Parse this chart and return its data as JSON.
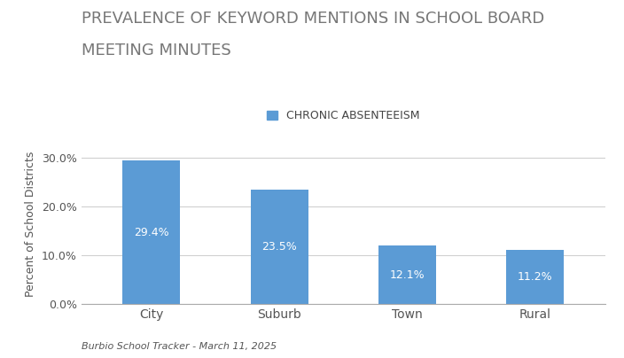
{
  "title_line1": "PREVALENCE OF KEYWORD MENTIONS IN SCHOOL BOARD",
  "title_line2": "MEETING MINUTES",
  "legend_label": "CHRONIC ABSENTEEISM",
  "categories": [
    "City",
    "Suburb",
    "Town",
    "Rural"
  ],
  "values": [
    29.4,
    23.5,
    12.1,
    11.2
  ],
  "bar_color": "#5b9bd5",
  "ylabel": "Percent of School Districts",
  "ylim": [
    0,
    33
  ],
  "yticks": [
    0.0,
    10.0,
    20.0,
    30.0
  ],
  "ytick_labels": [
    "0.0%",
    "10.0%",
    "20.0%",
    "30.0%"
  ],
  "bar_label_color": "#ffffff",
  "bar_label_fontsize": 9,
  "footnote": "Burbio School Tracker - March 11, 2025",
  "title_fontsize": 13,
  "legend_fontsize": 9,
  "ylabel_fontsize": 9,
  "xtick_fontsize": 10,
  "background_color": "#ffffff",
  "grid_color": "#d0d0d0",
  "bar_width": 0.45
}
